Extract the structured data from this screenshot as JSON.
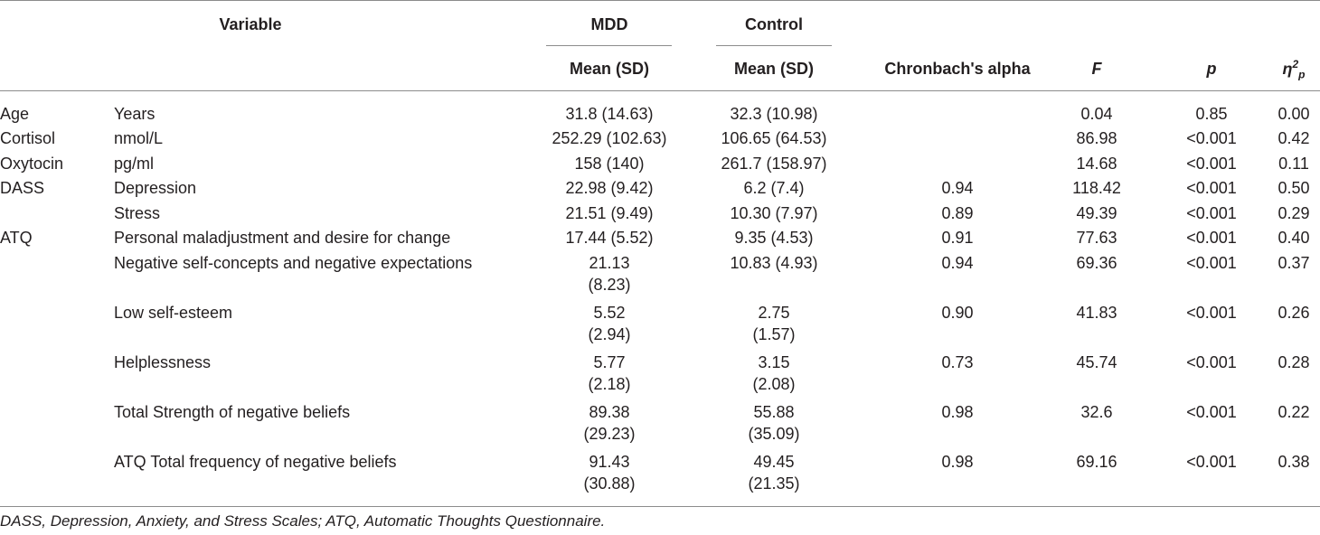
{
  "header": {
    "variable": "Variable",
    "mdd": "MDD",
    "control": "Control",
    "mdd_sub": "Mean (SD)",
    "control_sub": "Mean (SD)",
    "alpha": "Chronbach's alpha",
    "f": "F",
    "p": "p",
    "eta_base": "η",
    "eta_sup": "2",
    "eta_sub": "p"
  },
  "rows": [
    {
      "group": "Age",
      "var": "Years",
      "mdd": [
        "31.8 (14.63)"
      ],
      "ctrl": [
        "32.3 (10.98)"
      ],
      "alpha": "",
      "f": "0.04",
      "p": "0.85",
      "eta": "0.00"
    },
    {
      "group": "Cortisol",
      "var": "nmol/L",
      "mdd": [
        "252.29 (102.63)"
      ],
      "ctrl": [
        "106.65 (64.53)"
      ],
      "alpha": "",
      "f": "86.98",
      "p": "<0.001",
      "eta": "0.42"
    },
    {
      "group": "Oxytocin",
      "var": "pg/ml",
      "mdd": [
        "158 (140)"
      ],
      "ctrl": [
        "261.7 (158.97)"
      ],
      "alpha": "",
      "f": "14.68",
      "p": "<0.001",
      "eta": "0.11"
    },
    {
      "group": "DASS",
      "var": "Depression",
      "mdd": [
        "22.98 (9.42)"
      ],
      "ctrl": [
        "6.2 (7.4)"
      ],
      "alpha": "0.94",
      "f": "118.42",
      "p": "<0.001",
      "eta": "0.50"
    },
    {
      "group": "",
      "var": "Stress",
      "mdd": [
        "21.51 (9.49)"
      ],
      "ctrl": [
        "10.30 (7.97)"
      ],
      "alpha": "0.89",
      "f": "49.39",
      "p": "<0.001",
      "eta": "0.29"
    },
    {
      "group": "ATQ",
      "var": "Personal maladjustment and desire for change",
      "mdd": [
        "17.44 (5.52)"
      ],
      "ctrl": [
        "9.35 (4.53)"
      ],
      "alpha": "0.91",
      "f": "77.63",
      "p": "<0.001",
      "eta": "0.40"
    },
    {
      "group": "",
      "var": "Negative self-concepts and negative expectations",
      "mdd": [
        "21.13",
        "(8.23)"
      ],
      "ctrl": [
        "10.83 (4.93)"
      ],
      "alpha": "0.94",
      "f": "69.36",
      "p": "<0.001",
      "eta": "0.37"
    },
    {
      "group": "",
      "var": "Low self-esteem",
      "mdd": [
        "5.52",
        "(2.94)"
      ],
      "ctrl": [
        "2.75",
        "(1.57)"
      ],
      "alpha": "0.90",
      "f": "41.83",
      "p": "<0.001",
      "eta": "0.26"
    },
    {
      "group": "",
      "var": "Helplessness",
      "mdd": [
        "5.77",
        "(2.18)"
      ],
      "ctrl": [
        "3.15",
        "(2.08)"
      ],
      "alpha": "0.73",
      "f": "45.74",
      "p": "<0.001",
      "eta": "0.28"
    },
    {
      "group": "",
      "var": "Total Strength of negative beliefs",
      "mdd": [
        "89.38",
        "(29.23)"
      ],
      "ctrl": [
        "55.88",
        "(35.09)"
      ],
      "alpha": "0.98",
      "f": "32.6",
      "p": "<0.001",
      "eta": "0.22"
    },
    {
      "group": "",
      "var": "ATQ Total frequency of negative beliefs",
      "mdd": [
        "91.43",
        "(30.88)"
      ],
      "ctrl": [
        "49.45",
        "(21.35)"
      ],
      "alpha": "0.98",
      "f": "69.16",
      "p": "<0.001",
      "eta": "0.38"
    }
  ],
  "footnote": "DASS, Depression, Anxiety, and Stress Scales; ATQ, Automatic Thoughts Questionnaire."
}
